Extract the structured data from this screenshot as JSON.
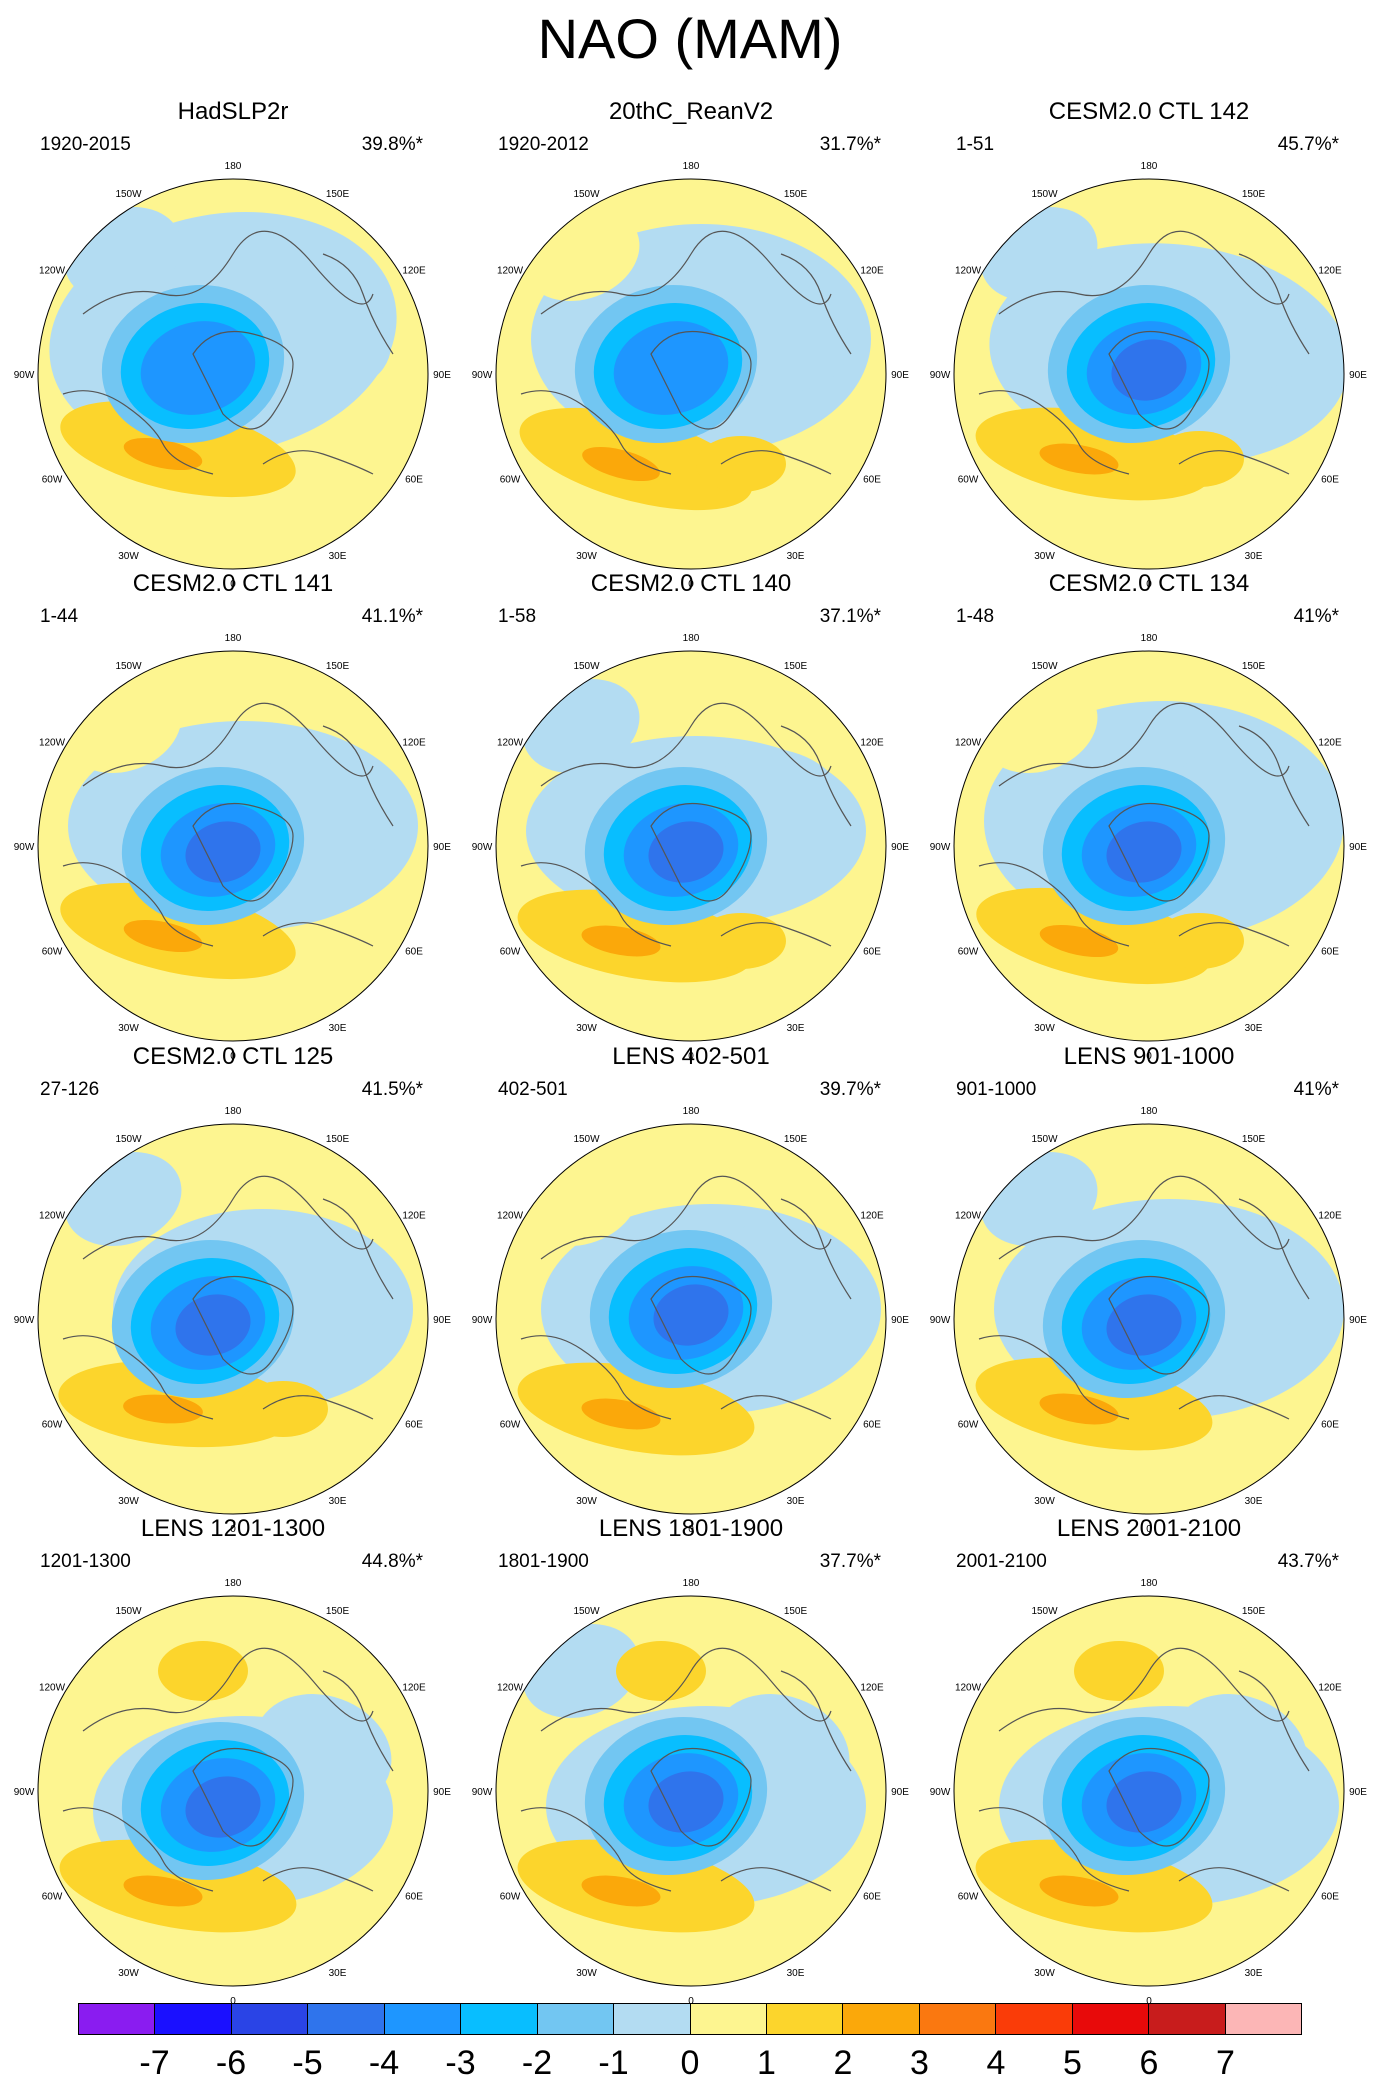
{
  "title": "NAO (MAM)",
  "panels": [
    {
      "title": "HadSLP2r",
      "period": "1920-2015",
      "percent": "39.8%*",
      "variant": 0
    },
    {
      "title": "20thC_ReanV2",
      "period": "1920-2012",
      "percent": "31.7%*",
      "variant": 1
    },
    {
      "title": "CESM2.0 CTL 142",
      "period": "1-51",
      "percent": "45.7%*",
      "variant": 2
    },
    {
      "title": "CESM2.0 CTL 141",
      "period": "1-44",
      "percent": "41.1%*",
      "variant": 3
    },
    {
      "title": "CESM2.0 CTL 140",
      "period": "1-58",
      "percent": "37.1%*",
      "variant": 4
    },
    {
      "title": "CESM2.0 CTL 134",
      "period": "1-48",
      "percent": "41%*",
      "variant": 5
    },
    {
      "title": "CESM2.0 CTL 125",
      "period": "27-126",
      "percent": "41.5%*",
      "variant": 6
    },
    {
      "title": "LENS 402-501",
      "period": "402-501",
      "percent": "39.7%*",
      "variant": 7
    },
    {
      "title": "LENS 901-1000",
      "period": "901-1000",
      "percent": "41%*",
      "variant": 8
    },
    {
      "title": "LENS 1201-1300",
      "period": "1201-1300",
      "percent": "44.8%*",
      "variant": 9
    },
    {
      "title": "LENS 1801-1900",
      "period": "1801-1900",
      "percent": "37.7%*",
      "variant": 10
    },
    {
      "title": "LENS 2001-2100",
      "period": "2001-2100",
      "percent": "43.7%*",
      "variant": 11
    }
  ],
  "longitude_labels": [
    "180",
    "150E",
    "120E",
    "90E",
    "60E",
    "30E",
    "0",
    "30W",
    "60W",
    "90W",
    "120W",
    "150W"
  ],
  "colorbar": {
    "colors": [
      "#8a1cf0",
      "#1a10ff",
      "#2a44e6",
      "#2f74ec",
      "#1e96ff",
      "#08beff",
      "#72c6f2",
      "#b3dcf2",
      "#fdf590",
      "#fcd52c",
      "#fba80a",
      "#fa7810",
      "#fa3c08",
      "#e80a0a",
      "#c81c1c",
      "#fcb6b6"
    ],
    "labels": [
      "-7",
      "-6",
      "-5",
      "-4",
      "-3",
      "-2",
      "-1",
      "0",
      "1",
      "2",
      "3",
      "4",
      "5",
      "6",
      "7"
    ]
  },
  "fill_colors": {
    "light_yellow": "#fdf590",
    "yellow": "#fcd52c",
    "orange": "#fba80a",
    "light_blue": "#b3dcf2",
    "blue1": "#72c6f2",
    "blue2": "#08beff",
    "blue3": "#1e96ff",
    "blue4": "#2f74ec"
  }
}
